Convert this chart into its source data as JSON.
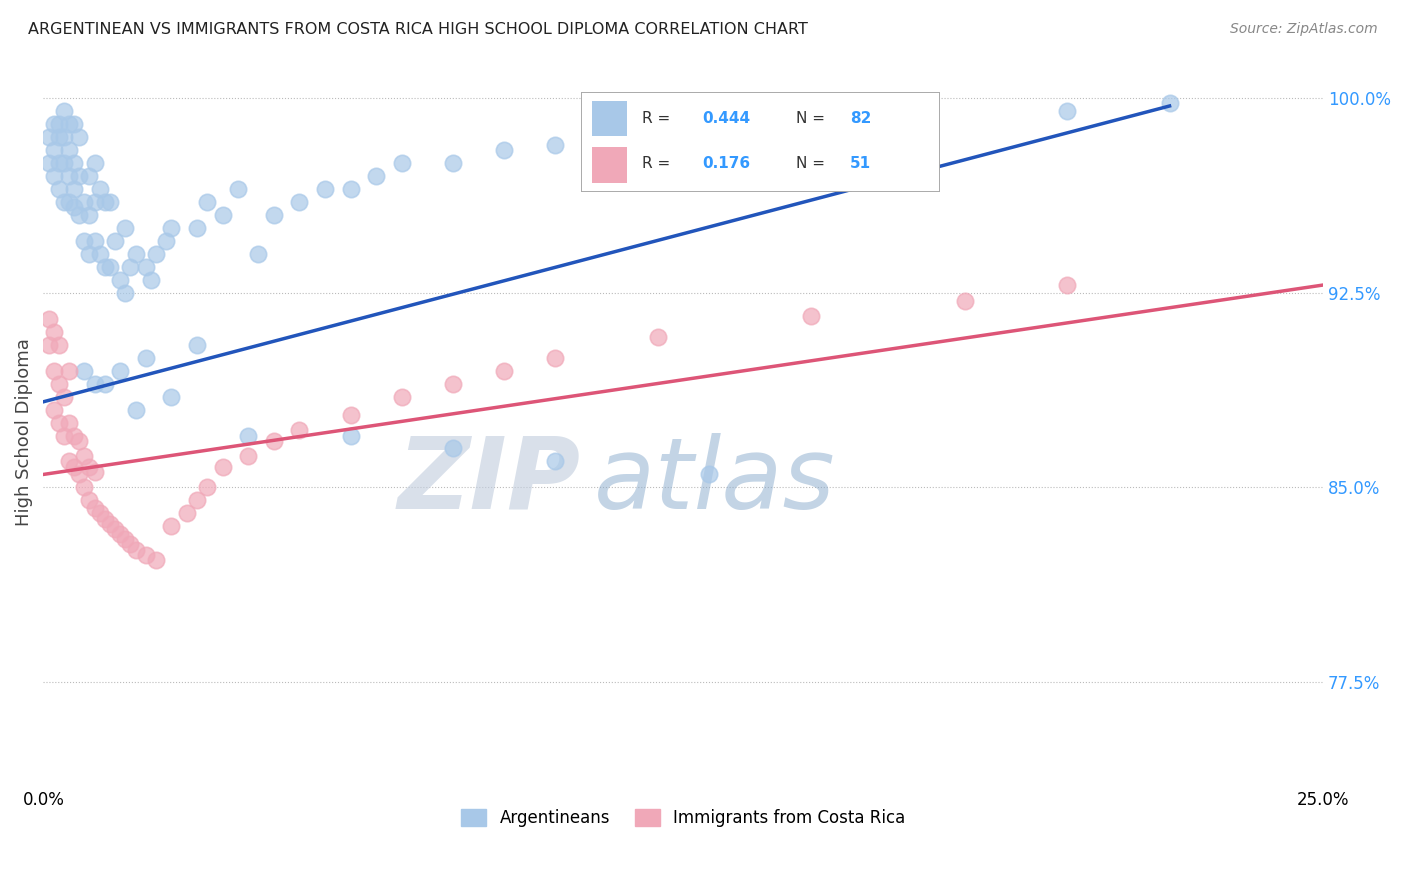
{
  "title": "ARGENTINEAN VS IMMIGRANTS FROM COSTA RICA HIGH SCHOOL DIPLOMA CORRELATION CHART",
  "source": "Source: ZipAtlas.com",
  "ylabel": "High School Diploma",
  "xlim": [
    0.0,
    0.25
  ],
  "ylim": [
    0.735,
    1.008
  ],
  "yticks": [
    0.775,
    0.85,
    0.925,
    1.0
  ],
  "ytick_labels": [
    "77.5%",
    "85.0%",
    "92.5%",
    "100.0%"
  ],
  "xticks": [
    0.0,
    0.05,
    0.1,
    0.15,
    0.2,
    0.25
  ],
  "xtick_labels": [
    "0.0%",
    "",
    "",
    "",
    "",
    "25.0%"
  ],
  "color_blue": "#A8C8E8",
  "color_pink": "#F0A8B8",
  "line_color_blue": "#2255BB",
  "line_color_pink": "#DD5577",
  "watermark_zip": "ZIP",
  "watermark_atlas": "atlas",
  "argentineans_x": [
    0.001,
    0.001,
    0.002,
    0.002,
    0.002,
    0.003,
    0.003,
    0.003,
    0.003,
    0.004,
    0.004,
    0.004,
    0.004,
    0.005,
    0.005,
    0.005,
    0.005,
    0.006,
    0.006,
    0.006,
    0.006,
    0.007,
    0.007,
    0.007,
    0.008,
    0.008,
    0.009,
    0.009,
    0.009,
    0.01,
    0.01,
    0.01,
    0.011,
    0.011,
    0.012,
    0.012,
    0.013,
    0.013,
    0.014,
    0.015,
    0.016,
    0.016,
    0.017,
    0.018,
    0.02,
    0.021,
    0.022,
    0.024,
    0.025,
    0.03,
    0.032,
    0.035,
    0.038,
    0.042,
    0.045,
    0.05,
    0.055,
    0.06,
    0.065,
    0.07,
    0.08,
    0.09,
    0.1,
    0.11,
    0.13,
    0.17,
    0.2,
    0.22,
    0.008,
    0.01,
    0.012,
    0.015,
    0.018,
    0.02,
    0.025,
    0.03,
    0.04,
    0.06,
    0.08,
    0.1,
    0.13
  ],
  "argentineans_y": [
    0.975,
    0.985,
    0.97,
    0.98,
    0.99,
    0.965,
    0.975,
    0.985,
    0.99,
    0.96,
    0.975,
    0.985,
    0.995,
    0.96,
    0.97,
    0.98,
    0.99,
    0.958,
    0.965,
    0.975,
    0.99,
    0.955,
    0.97,
    0.985,
    0.945,
    0.96,
    0.94,
    0.955,
    0.97,
    0.945,
    0.96,
    0.975,
    0.94,
    0.965,
    0.935,
    0.96,
    0.935,
    0.96,
    0.945,
    0.93,
    0.925,
    0.95,
    0.935,
    0.94,
    0.935,
    0.93,
    0.94,
    0.945,
    0.95,
    0.95,
    0.96,
    0.955,
    0.965,
    0.94,
    0.955,
    0.96,
    0.965,
    0.965,
    0.97,
    0.975,
    0.975,
    0.98,
    0.982,
    0.985,
    0.99,
    0.993,
    0.995,
    0.998,
    0.895,
    0.89,
    0.89,
    0.895,
    0.88,
    0.9,
    0.885,
    0.905,
    0.87,
    0.87,
    0.865,
    0.86,
    0.855
  ],
  "costa_rica_x": [
    0.001,
    0.001,
    0.002,
    0.002,
    0.002,
    0.003,
    0.003,
    0.003,
    0.004,
    0.004,
    0.005,
    0.005,
    0.005,
    0.006,
    0.006,
    0.007,
    0.007,
    0.008,
    0.008,
    0.009,
    0.009,
    0.01,
    0.01,
    0.011,
    0.012,
    0.013,
    0.014,
    0.015,
    0.016,
    0.017,
    0.018,
    0.02,
    0.022,
    0.025,
    0.028,
    0.03,
    0.032,
    0.035,
    0.04,
    0.045,
    0.05,
    0.06,
    0.07,
    0.08,
    0.09,
    0.1,
    0.12,
    0.15,
    0.18,
    0.2
  ],
  "costa_rica_y": [
    0.905,
    0.915,
    0.88,
    0.895,
    0.91,
    0.875,
    0.89,
    0.905,
    0.87,
    0.885,
    0.86,
    0.875,
    0.895,
    0.858,
    0.87,
    0.855,
    0.868,
    0.85,
    0.862,
    0.845,
    0.858,
    0.842,
    0.856,
    0.84,
    0.838,
    0.836,
    0.834,
    0.832,
    0.83,
    0.828,
    0.826,
    0.824,
    0.822,
    0.835,
    0.84,
    0.845,
    0.85,
    0.858,
    0.862,
    0.868,
    0.872,
    0.878,
    0.885,
    0.89,
    0.895,
    0.9,
    0.908,
    0.916,
    0.922,
    0.928
  ],
  "blue_line_x": [
    0.0,
    0.22
  ],
  "blue_line_y": [
    0.883,
    0.997
  ],
  "pink_line_x": [
    0.0,
    0.25
  ],
  "pink_line_y": [
    0.855,
    0.928
  ]
}
